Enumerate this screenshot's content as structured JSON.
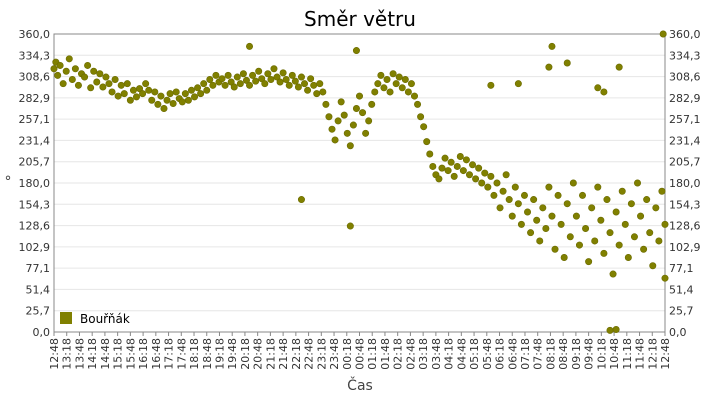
{
  "chart_data": {
    "type": "scatter",
    "title": "Směr větru",
    "xlabel": "Čas",
    "ylabel": "°",
    "ylim": [
      0,
      360
    ],
    "yticks": [
      "0,0",
      "25,7",
      "51,4",
      "77,1",
      "102,9",
      "128,6",
      "154,3",
      "180,0",
      "205,7",
      "231,4",
      "257,1",
      "282,9",
      "308,6",
      "334,3",
      "360,0"
    ],
    "xticks": [
      "12:48",
      "13:18",
      "13:48",
      "14:18",
      "14:48",
      "15:18",
      "15:48",
      "16:18",
      "16:48",
      "17:18",
      "17:48",
      "18:18",
      "18:48",
      "19:18",
      "19:48",
      "20:18",
      "20:48",
      "21:18",
      "21:48",
      "22:18",
      "22:48",
      "23:18",
      "23:48",
      "00:18",
      "00:48",
      "01:18",
      "01:48",
      "02:18",
      "02:48",
      "03:18",
      "03:48",
      "04:18",
      "04:48",
      "05:18",
      "05:48",
      "06:18",
      "06:48",
      "07:18",
      "07:48",
      "08:18",
      "08:48",
      "09:18",
      "09:48",
      "10:18",
      "10:48",
      "11:18",
      "11:48",
      "12:18",
      "12:48"
    ],
    "grid": true,
    "legend_position": "bottom-left",
    "series": [
      {
        "name": "Bouřňák",
        "color": "#808000",
        "points": [
          [
            0,
            318
          ],
          [
            0.3,
            326
          ],
          [
            0.6,
            310
          ],
          [
            1,
            322
          ],
          [
            1.5,
            300
          ],
          [
            2,
            315
          ],
          [
            2.5,
            330
          ],
          [
            3,
            305
          ],
          [
            3.5,
            318
          ],
          [
            4,
            298
          ],
          [
            4.5,
            312
          ],
          [
            5,
            308
          ],
          [
            5.5,
            322
          ],
          [
            6,
            295
          ],
          [
            6.5,
            315
          ],
          [
            7,
            302
          ],
          [
            7.5,
            312
          ],
          [
            8,
            296
          ],
          [
            8.5,
            308
          ],
          [
            9,
            300
          ],
          [
            9.5,
            290
          ],
          [
            10,
            305
          ],
          [
            10.5,
            285
          ],
          [
            11,
            298
          ],
          [
            11.5,
            288
          ],
          [
            12,
            300
          ],
          [
            12.5,
            280
          ],
          [
            13,
            292
          ],
          [
            13.5,
            284
          ],
          [
            14,
            294
          ],
          [
            14.5,
            288
          ],
          [
            15,
            300
          ],
          [
            15.5,
            292
          ],
          [
            16,
            280
          ],
          [
            16.5,
            290
          ],
          [
            17,
            275
          ],
          [
            17.5,
            285
          ],
          [
            18,
            270
          ],
          [
            18.5,
            280
          ],
          [
            19,
            288
          ],
          [
            19.5,
            276
          ],
          [
            20,
            290
          ],
          [
            20.5,
            282
          ],
          [
            21,
            278
          ],
          [
            21.5,
            288
          ],
          [
            22,
            280
          ],
          [
            22.5,
            292
          ],
          [
            23,
            284
          ],
          [
            23.5,
            295
          ],
          [
            24,
            288
          ],
          [
            24.5,
            300
          ],
          [
            25,
            292
          ],
          [
            25.5,
            305
          ],
          [
            26,
            298
          ],
          [
            26.5,
            310
          ],
          [
            27,
            302
          ],
          [
            27.5,
            306
          ],
          [
            28,
            298
          ],
          [
            28.5,
            310
          ],
          [
            29,
            302
          ],
          [
            29.5,
            296
          ],
          [
            30,
            308
          ],
          [
            30.5,
            300
          ],
          [
            31,
            312
          ],
          [
            31.5,
            304
          ],
          [
            32,
            298
          ],
          [
            32.5,
            310
          ],
          [
            33,
            303
          ],
          [
            33.5,
            315
          ],
          [
            34,
            306
          ],
          [
            34.5,
            300
          ],
          [
            35,
            312
          ],
          [
            35.5,
            305
          ],
          [
            36,
            318
          ],
          [
            36.5,
            308
          ],
          [
            37,
            302
          ],
          [
            37.5,
            313
          ],
          [
            38,
            305
          ],
          [
            38.5,
            298
          ],
          [
            39,
            310
          ],
          [
            39.5,
            303
          ],
          [
            40,
            296
          ],
          [
            40.5,
            308
          ],
          [
            41,
            300
          ],
          [
            41.5,
            292
          ],
          [
            42,
            306
          ],
          [
            42.5,
            298
          ],
          [
            43,
            288
          ],
          [
            43.5,
            300
          ],
          [
            44,
            290
          ],
          [
            44.5,
            275
          ],
          [
            45,
            260
          ],
          [
            45.5,
            245
          ],
          [
            46,
            232
          ],
          [
            46.5,
            255
          ],
          [
            47,
            278
          ],
          [
            47.5,
            262
          ],
          [
            48,
            240
          ],
          [
            48.5,
            225
          ],
          [
            49,
            250
          ],
          [
            49.5,
            270
          ],
          [
            50,
            285
          ],
          [
            50.5,
            265
          ],
          [
            51,
            240
          ],
          [
            51.5,
            255
          ],
          [
            52,
            275
          ],
          [
            52.5,
            290
          ],
          [
            53,
            300
          ],
          [
            53.5,
            310
          ],
          [
            54,
            295
          ],
          [
            54.5,
            305
          ],
          [
            55,
            290
          ],
          [
            55.5,
            312
          ],
          [
            56,
            300
          ],
          [
            56.5,
            308
          ],
          [
            57,
            295
          ],
          [
            57.5,
            305
          ],
          [
            58,
            290
          ],
          [
            58.5,
            300
          ],
          [
            59,
            285
          ],
          [
            59.5,
            275
          ],
          [
            60,
            260
          ],
          [
            60.5,
            248
          ],
          [
            61,
            230
          ],
          [
            61.5,
            215
          ],
          [
            62,
            200
          ],
          [
            62.5,
            190
          ],
          [
            63,
            185
          ],
          [
            63.5,
            198
          ],
          [
            64,
            210
          ],
          [
            64.5,
            195
          ],
          [
            65,
            205
          ],
          [
            65.5,
            188
          ],
          [
            66,
            200
          ],
          [
            66.5,
            212
          ],
          [
            67,
            195
          ],
          [
            67.5,
            208
          ],
          [
            68,
            190
          ],
          [
            68.5,
            202
          ],
          [
            69,
            185
          ],
          [
            69.5,
            198
          ],
          [
            70,
            180
          ],
          [
            70.5,
            192
          ],
          [
            71,
            175
          ],
          [
            71.5,
            188
          ],
          [
            72,
            165
          ],
          [
            72.5,
            180
          ],
          [
            73,
            150
          ],
          [
            73.5,
            170
          ],
          [
            74,
            190
          ],
          [
            74.5,
            160
          ],
          [
            75,
            140
          ],
          [
            75.5,
            175
          ],
          [
            76,
            155
          ],
          [
            76.5,
            130
          ],
          [
            77,
            165
          ],
          [
            77.5,
            145
          ],
          [
            78,
            120
          ],
          [
            78.5,
            160
          ],
          [
            79,
            135
          ],
          [
            79.5,
            110
          ],
          [
            80,
            150
          ],
          [
            80.5,
            125
          ],
          [
            81,
            175
          ],
          [
            81.5,
            140
          ],
          [
            82,
            100
          ],
          [
            82.5,
            165
          ],
          [
            83,
            130
          ],
          [
            83.5,
            90
          ],
          [
            84,
            155
          ],
          [
            84.5,
            115
          ],
          [
            85,
            180
          ],
          [
            85.5,
            140
          ],
          [
            86,
            105
          ],
          [
            86.5,
            165
          ],
          [
            87,
            125
          ],
          [
            87.5,
            85
          ],
          [
            88,
            150
          ],
          [
            88.5,
            110
          ],
          [
            89,
            175
          ],
          [
            89.5,
            135
          ],
          [
            90,
            95
          ],
          [
            90.5,
            160
          ],
          [
            91,
            120
          ],
          [
            91.5,
            70
          ],
          [
            92,
            145
          ],
          [
            92.5,
            105
          ],
          [
            93,
            170
          ],
          [
            93.5,
            130
          ],
          [
            94,
            90
          ],
          [
            94.5,
            155
          ],
          [
            95,
            115
          ],
          [
            95.5,
            180
          ],
          [
            96,
            140
          ],
          [
            96.5,
            100
          ],
          [
            97,
            160
          ],
          [
            97.5,
            120
          ],
          [
            98,
            80
          ],
          [
            98.5,
            150
          ],
          [
            99,
            110
          ],
          [
            99.5,
            170
          ],
          [
            100,
            130
          ],
          [
            32,
            345
          ],
          [
            40.5,
            160
          ],
          [
            48.5,
            128
          ],
          [
            49.5,
            340
          ],
          [
            71.5,
            298
          ],
          [
            76,
            300
          ],
          [
            81,
            320
          ],
          [
            81.5,
            345
          ],
          [
            84,
            325
          ],
          [
            89,
            295
          ],
          [
            90,
            290
          ],
          [
            91,
            2
          ],
          [
            92,
            3
          ],
          [
            92.5,
            320
          ],
          [
            99.7,
            360
          ],
          [
            100,
            65
          ]
        ]
      }
    ]
  }
}
